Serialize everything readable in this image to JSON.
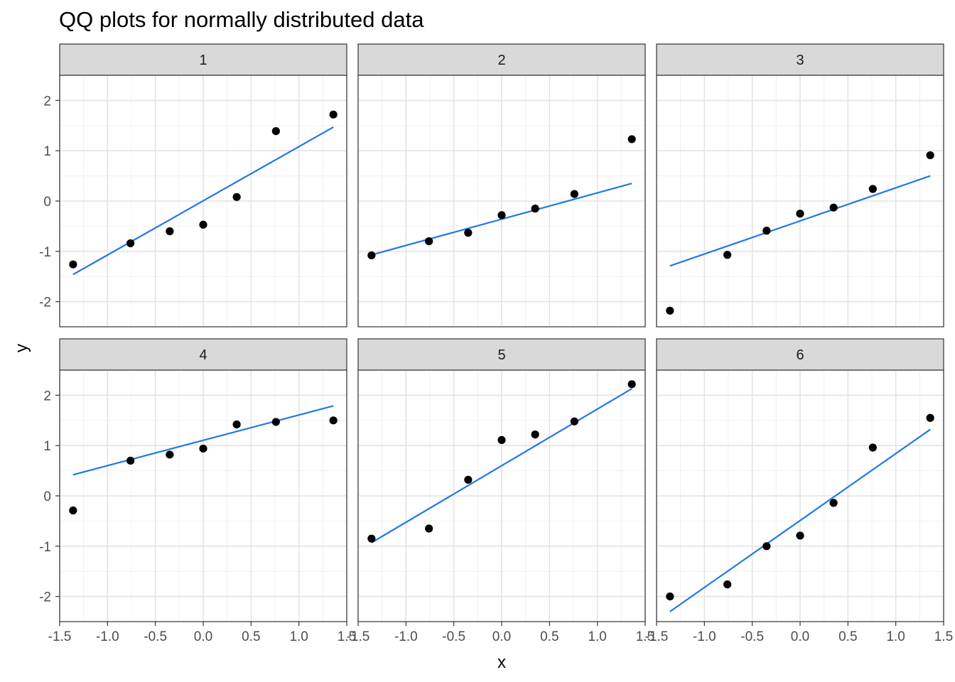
{
  "chart_data": {
    "type": "scatter",
    "title": "QQ plots for normally distributed data",
    "xlabel": "x",
    "ylabel": "y",
    "xlim": [
      -1.5,
      1.5
    ],
    "ylim": [
      -2.5,
      2.5
    ],
    "x_ticks": [
      "-1.5",
      "-1.0",
      "-0.5",
      "0.0",
      "0.5",
      "1.0",
      "1.5"
    ],
    "y_ticks": [
      "-2",
      "-1",
      "0",
      "1",
      "2"
    ],
    "x_tick_values": [
      -1.5,
      -1.0,
      -0.5,
      0.0,
      0.5,
      1.0,
      1.5
    ],
    "y_tick_values": [
      -2,
      -1,
      0,
      1,
      2
    ],
    "grid": true,
    "point_color": "#000000",
    "line_color": "#1f78e8",
    "strip_color": "#d9d9d9",
    "panels": [
      {
        "label": "1",
        "x": [
          -1.36,
          -0.76,
          -0.35,
          0.0,
          0.35,
          0.76,
          1.36
        ],
        "y": [
          -1.26,
          -0.84,
          -0.6,
          -0.47,
          0.08,
          1.39,
          1.72
        ],
        "fit": {
          "x": [
            -1.36,
            1.36
          ],
          "y": [
            -1.46,
            1.47
          ]
        }
      },
      {
        "label": "2",
        "x": [
          -1.36,
          -0.76,
          -0.35,
          0.0,
          0.35,
          0.76,
          1.36
        ],
        "y": [
          -1.08,
          -0.8,
          -0.63,
          -0.28,
          -0.15,
          0.14,
          1.23
        ],
        "fit": {
          "x": [
            -1.36,
            1.36
          ],
          "y": [
            -1.07,
            0.35
          ]
        }
      },
      {
        "label": "3",
        "x": [
          -1.36,
          -0.76,
          -0.35,
          0.0,
          0.35,
          0.76,
          1.36
        ],
        "y": [
          -2.18,
          -1.07,
          -0.59,
          -0.25,
          -0.13,
          0.24,
          0.91
        ],
        "fit": {
          "x": [
            -1.36,
            1.36
          ],
          "y": [
            -1.29,
            0.5
          ]
        }
      },
      {
        "label": "4",
        "x": [
          -1.36,
          -0.76,
          -0.35,
          0.0,
          0.35,
          0.76,
          1.36
        ],
        "y": [
          -0.29,
          0.7,
          0.82,
          0.94,
          1.42,
          1.47,
          1.5
        ],
        "fit": {
          "x": [
            -1.36,
            1.36
          ],
          "y": [
            0.42,
            1.79
          ]
        }
      },
      {
        "label": "5",
        "x": [
          -1.36,
          -0.76,
          -0.35,
          0.0,
          0.35,
          0.76,
          1.36
        ],
        "y": [
          -0.85,
          -0.65,
          0.32,
          1.11,
          1.22,
          1.48,
          2.22
        ],
        "fit": {
          "x": [
            -1.36,
            1.36
          ],
          "y": [
            -0.93,
            2.13
          ]
        }
      },
      {
        "label": "6",
        "x": [
          -1.36,
          -0.76,
          -0.35,
          0.0,
          0.35,
          0.76,
          1.36
        ],
        "y": [
          -2.0,
          -1.76,
          -1.0,
          -0.79,
          -0.14,
          0.96,
          1.55
        ],
        "fit": {
          "x": [
            -1.36,
            1.36
          ],
          "y": [
            -2.3,
            1.32
          ]
        }
      }
    ]
  }
}
